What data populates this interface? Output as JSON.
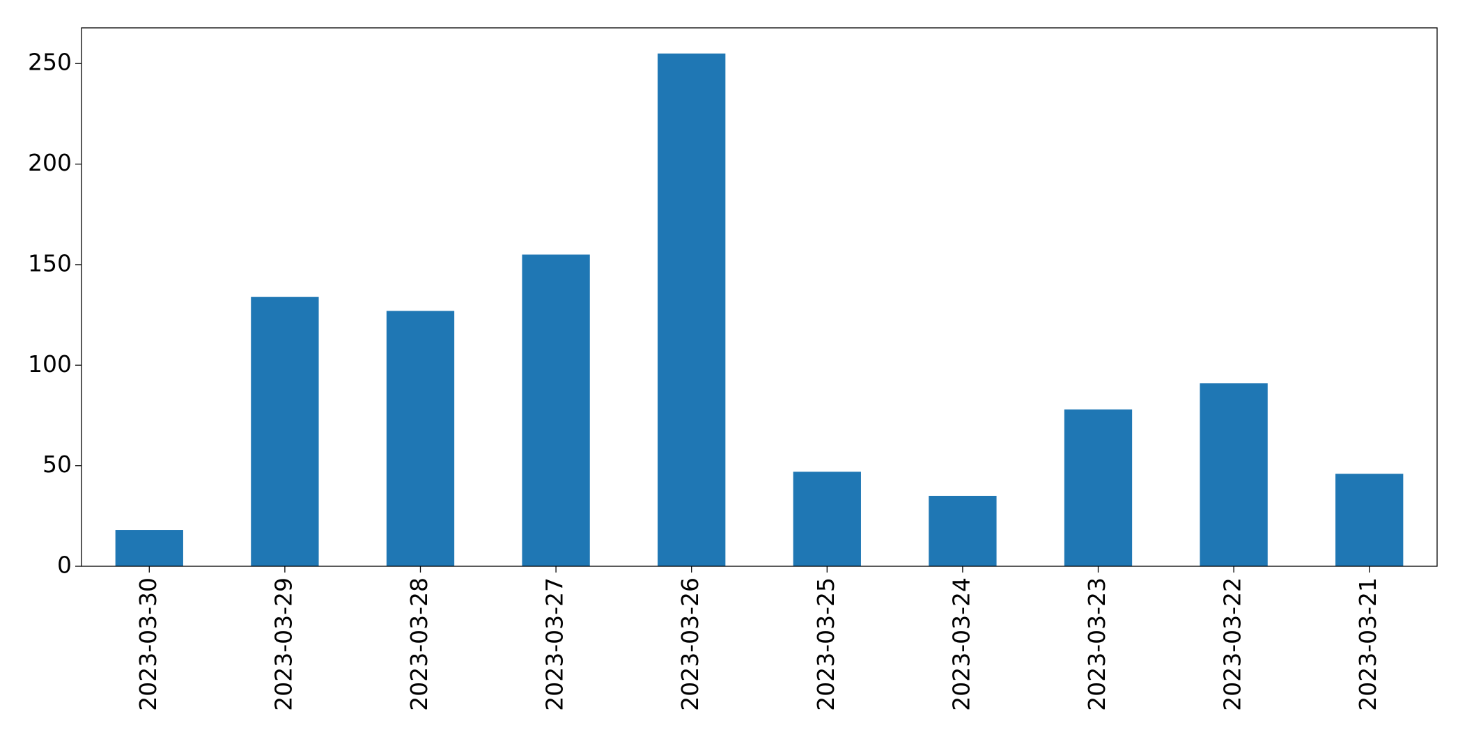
{
  "chart_data": {
    "type": "bar",
    "categories": [
      "2023-03-30",
      "2023-03-29",
      "2023-03-28",
      "2023-03-27",
      "2023-03-26",
      "2023-03-25",
      "2023-03-24",
      "2023-03-23",
      "2023-03-22",
      "2023-03-21"
    ],
    "values": [
      18,
      134,
      127,
      155,
      255,
      47,
      35,
      78,
      91,
      46
    ],
    "color": "#1f77b4",
    "ylim": [
      0,
      267.75
    ],
    "yticks": [
      0,
      50,
      100,
      150,
      200,
      250
    ],
    "grid": false
  }
}
